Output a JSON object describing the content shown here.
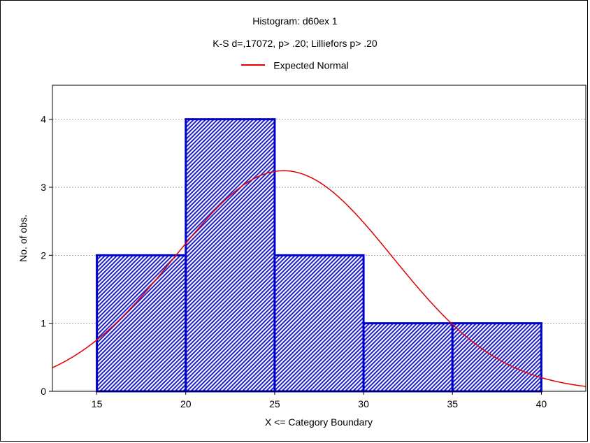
{
  "chart_data": {
    "type": "bar",
    "title": "Histogram: d60ex 1",
    "subtitle": "K-S d=,17072, p> .20; Lilliefors p> .20",
    "xlabel": "X <= Category Boundary",
    "ylabel": "No. of obs.",
    "xlim": [
      12.5,
      42.5
    ],
    "ylim": [
      0,
      4.5
    ],
    "xticks": [
      15,
      20,
      25,
      30,
      35,
      40
    ],
    "yticks": [
      0,
      1,
      2,
      3,
      4
    ],
    "bins": [
      {
        "from": 15,
        "to": 20,
        "count": 2
      },
      {
        "from": 20,
        "to": 25,
        "count": 4
      },
      {
        "from": 25,
        "to": 30,
        "count": 2
      },
      {
        "from": 30,
        "to": 35,
        "count": 1
      },
      {
        "from": 35,
        "to": 40,
        "count": 1
      }
    ],
    "series": [
      {
        "name": "Expected Normal",
        "type": "line",
        "mean": 25.5,
        "sd": 6.15,
        "n": 10,
        "bin_width": 5
      }
    ],
    "grid": true,
    "legend_position": "top-center",
    "colors": {
      "bar_fill": "#1c1ccf",
      "bar_edge": "#0000cc",
      "curve": "#e00000",
      "grid": "#a0a0a0"
    }
  }
}
